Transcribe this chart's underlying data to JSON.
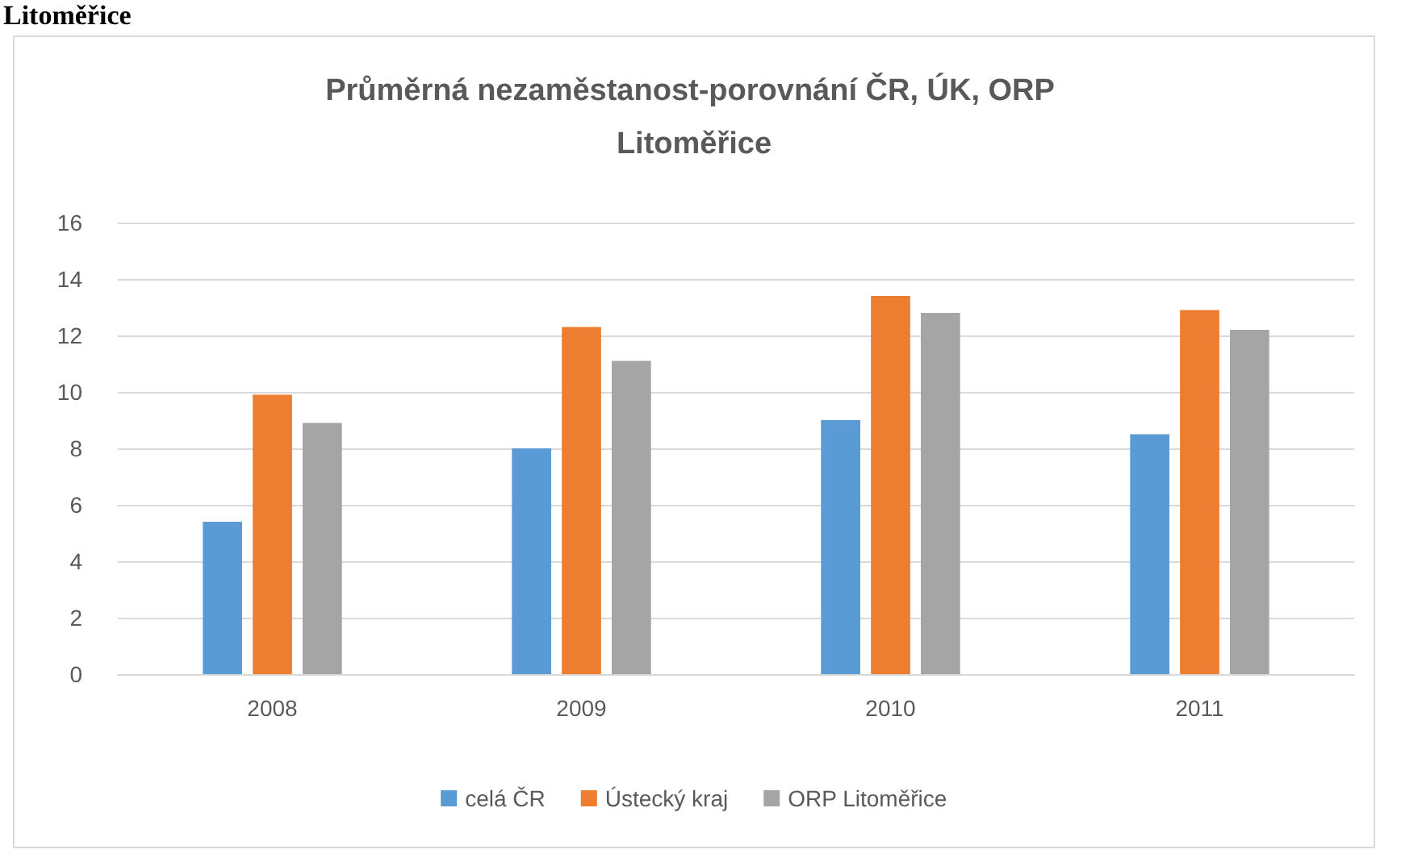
{
  "chart_data": {
    "type": "bar",
    "title": "Průměrná nezaměstanost-porovnání ČR, ÚK, ORP Litoměřice",
    "annotations": [
      "Litoměřice"
    ],
    "categories": [
      "2008",
      "2009",
      "2010",
      "2011"
    ],
    "series": [
      {
        "name": "celá ČR",
        "color": "#5b9bd5",
        "values": [
          5.4,
          8.0,
          9.0,
          8.5
        ]
      },
      {
        "name": "Ústecký kraj",
        "color": "#ed7d31",
        "values": [
          9.9,
          12.3,
          13.4,
          12.9
        ]
      },
      {
        "name": "ORP Litoměřice",
        "color": "#a5a5a5",
        "values": [
          8.9,
          11.1,
          12.8,
          12.2
        ]
      }
    ],
    "ylim": [
      0,
      16
    ],
    "yticks": [
      0,
      2,
      4,
      6,
      8,
      10,
      12,
      14,
      16
    ],
    "grid": "y",
    "legend": "bottom"
  }
}
